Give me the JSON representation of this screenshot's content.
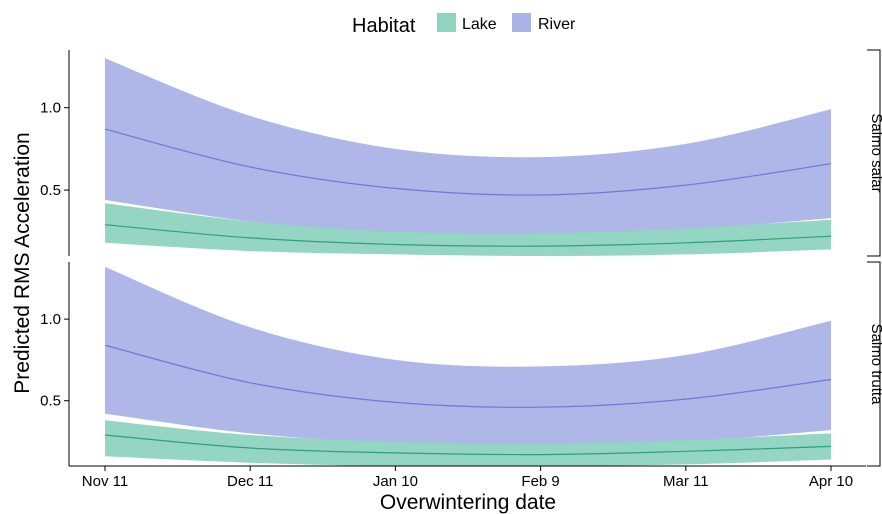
{
  "legend": {
    "title": "Habitat",
    "items": [
      {
        "label": "Lake",
        "color": "#8fd3c1"
      },
      {
        "label": "River",
        "color": "#aab3e6"
      }
    ]
  },
  "chart_data": {
    "type": "area",
    "xlabel": "Overwintering date",
    "ylabel": "Predicted RMS Acceleration",
    "x_ticks": [
      "Nov 11",
      "Dec 11",
      "Jan 10",
      "Feb 9",
      "Mar 11",
      "Apr 10"
    ],
    "x_domain": [
      "Nov 11",
      "Apr 10"
    ],
    "y_ticks": [
      "0.5",
      "1.0"
    ],
    "ylim": [
      0.1,
      1.35
    ],
    "grid": false,
    "legend_position": "top",
    "facets": [
      {
        "label": "Salmo salar",
        "series": [
          {
            "name": "River",
            "color": "#6d79d6",
            "x": [
              "Nov 11",
              "Dec 11",
              "Jan 10",
              "Feb 9",
              "Mar 11",
              "Apr 10"
            ],
            "fit": [
              0.87,
              0.64,
              0.51,
              0.47,
              0.53,
              0.66
            ],
            "lower": [
              0.44,
              0.31,
              0.24,
              0.23,
              0.26,
              0.33
            ],
            "upper": [
              1.3,
              0.95,
              0.75,
              0.7,
              0.78,
              0.99
            ]
          },
          {
            "name": "Lake",
            "color": "#2e9f80",
            "x": [
              "Nov 11",
              "Dec 11",
              "Jan 10",
              "Feb 9",
              "Mar 11",
              "Apr 10"
            ],
            "fit": [
              0.29,
              0.21,
              0.17,
              0.16,
              0.18,
              0.22
            ],
            "lower": [
              0.18,
              0.13,
              0.11,
              0.1,
              0.11,
              0.14
            ],
            "upper": [
              0.42,
              0.31,
              0.25,
              0.24,
              0.27,
              0.32
            ]
          }
        ]
      },
      {
        "label": "Salmo trutta",
        "series": [
          {
            "name": "River",
            "color": "#6d79d6",
            "x": [
              "Nov 11",
              "Dec 11",
              "Jan 10",
              "Feb 9",
              "Mar 11",
              "Apr 10"
            ],
            "fit": [
              0.84,
              0.61,
              0.49,
              0.46,
              0.51,
              0.63
            ],
            "lower": [
              0.42,
              0.3,
              0.24,
              0.23,
              0.25,
              0.32
            ],
            "upper": [
              1.32,
              0.95,
              0.75,
              0.71,
              0.78,
              0.99
            ]
          },
          {
            "name": "Lake",
            "color": "#2e9f80",
            "x": [
              "Nov 11",
              "Dec 11",
              "Jan 10",
              "Feb 9",
              "Mar 11",
              "Apr 10"
            ],
            "fit": [
              0.29,
              0.21,
              0.18,
              0.17,
              0.19,
              0.22
            ],
            "lower": [
              0.16,
              0.12,
              0.1,
              0.1,
              0.11,
              0.14
            ],
            "upper": [
              0.38,
              0.29,
              0.25,
              0.24,
              0.26,
              0.3
            ]
          }
        ]
      }
    ]
  }
}
